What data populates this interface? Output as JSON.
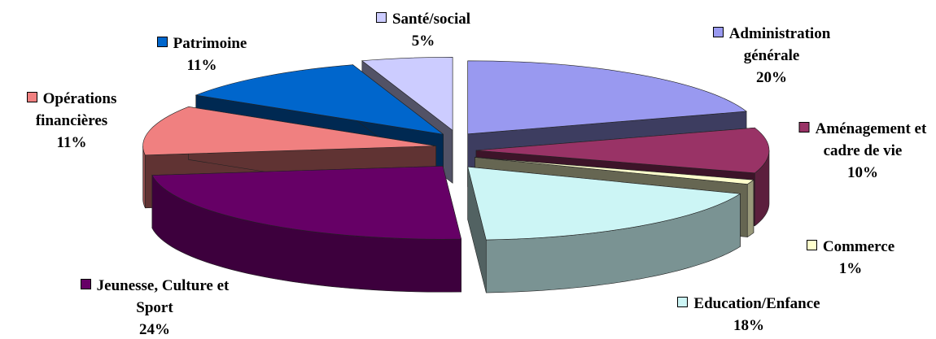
{
  "chart_data": {
    "type": "pie",
    "categories": [
      "Administration générale",
      "Aménagement et cadre de vie",
      "Commerce",
      "Education/Enfance",
      "Jeunesse, Culture et Sport",
      "Opérations financières",
      "Patrimoine",
      "Santé/social"
    ],
    "values": [
      20,
      10,
      1,
      18,
      24,
      11,
      11,
      5
    ],
    "value_labels": [
      "20%",
      "10%",
      "1%",
      "18%",
      "24%",
      "11%",
      "11%",
      "5%"
    ],
    "colors": [
      "#9999f0",
      "#993366",
      "#ffffcc",
      "#ccf5f5",
      "#660066",
      "#f08080",
      "#0066cc",
      "#ccccff"
    ]
  }
}
